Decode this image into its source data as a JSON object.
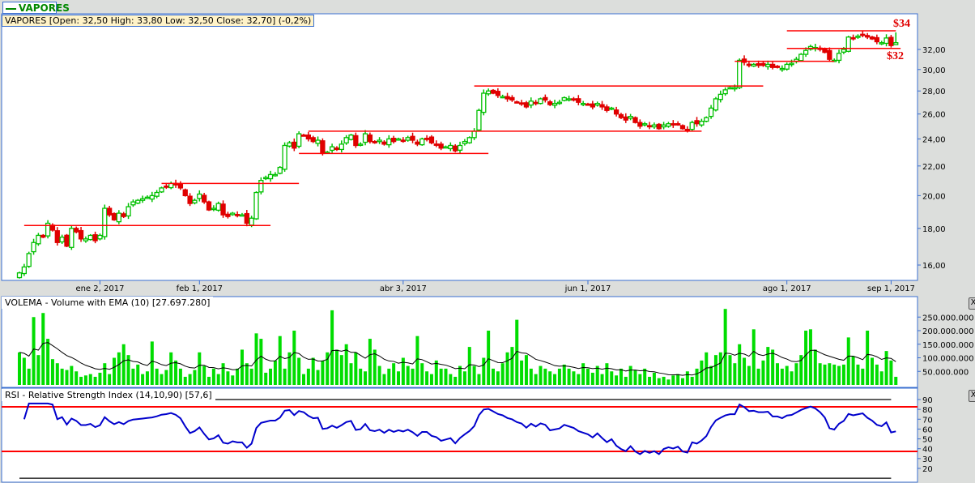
{
  "window": {
    "tab_label": "VAPORES"
  },
  "price_panel": {
    "header": "VAPORES [Open: 32,50  High: 33,80  Low: 32,50  Close: 32,70] (-0,2%)",
    "annotations": [
      {
        "text": "$34",
        "color": "#e00000"
      },
      {
        "text": "$32",
        "color": "#e00000"
      }
    ]
  },
  "volume_panel": {
    "header": "VOLEMA - Volume with EMA (10) [27.697.280]",
    "close_label": "X"
  },
  "rsi_panel": {
    "header": "RSI - Relative Strength Index (14,10,90) [57,6]",
    "close_label": "X"
  },
  "colors": {
    "up": "#00c000",
    "down": "#e00000",
    "volume": "#00dd00",
    "ema": "#000000",
    "rsi": "#0000cc",
    "levels": "#ff0000",
    "border": "#3a6fd0"
  },
  "chart_data": [
    {
      "type": "candlestick",
      "y_scale": "log",
      "ylim": [
        15.2,
        35.2
      ],
      "y_ticks": [
        "16,00",
        "18,00",
        "20,00",
        "22,00",
        "24,00",
        "26,00",
        "28,00",
        "30,00",
        "32,00"
      ],
      "y_tick_values": [
        16,
        18,
        20,
        22,
        24,
        26,
        28,
        30,
        32
      ],
      "x_ticks": [
        {
          "label": "ene 2, 2017",
          "index": 17
        },
        {
          "label": "feb 1, 2017",
          "index": 38
        },
        {
          "label": "abr 3, 2017",
          "index": 81
        },
        {
          "label": "jun 1, 2017",
          "index": 120
        },
        {
          "label": "ago 1, 2017",
          "index": 162
        },
        {
          "label": "sep 1, 2017",
          "index": 184
        }
      ],
      "last": {
        "open": 32.5,
        "high": 33.8,
        "low": 32.5,
        "close": 32.7
      },
      "close": [
        15.6,
        15.9,
        16.6,
        17.2,
        17.6,
        17.5,
        18.3,
        17.9,
        17.2,
        17.5,
        17.0,
        18.0,
        17.8,
        17.4,
        17.4,
        17.6,
        17.3,
        17.6,
        19.2,
        18.8,
        18.5,
        18.9,
        18.7,
        19.3,
        19.6,
        19.7,
        19.8,
        19.9,
        20.0,
        20.2,
        20.5,
        20.6,
        20.8,
        20.7,
        20.5,
        20.0,
        19.5,
        19.7,
        20.1,
        19.6,
        19.1,
        19.2,
        19.5,
        18.8,
        18.7,
        18.9,
        18.8,
        18.8,
        18.3,
        18.6,
        20.2,
        21.0,
        21.2,
        21.4,
        21.4,
        21.9,
        23.5,
        23.7,
        23.3,
        24.4,
        24.3,
        24.0,
        23.8,
        23.9,
        22.9,
        23.0,
        23.4,
        23.2,
        23.6,
        24.1,
        24.3,
        23.5,
        23.6,
        24.4,
        23.8,
        23.7,
        23.9,
        23.6,
        24.0,
        23.8,
        24.0,
        23.9,
        24.1,
        23.9,
        23.6,
        24.0,
        24.0,
        23.7,
        23.6,
        23.3,
        23.4,
        23.5,
        23.1,
        23.5,
        23.8,
        24.1,
        24.6,
        26.3,
        27.8,
        28.0,
        27.8,
        27.6,
        27.5,
        27.3,
        27.2,
        27.0,
        26.9,
        26.6,
        27.1,
        26.9,
        27.3,
        27.2,
        26.8,
        26.9,
        27.0,
        27.4,
        27.3,
        27.2,
        27.0,
        26.9,
        26.8,
        26.6,
        26.9,
        26.6,
        26.3,
        26.5,
        26.0,
        25.7,
        25.5,
        25.8,
        25.3,
        25.0,
        25.2,
        25.0,
        25.1,
        24.8,
        25.1,
        25.2,
        25.1,
        25.2,
        24.8,
        24.7,
        25.3,
        25.2,
        25.4,
        25.7,
        26.5,
        27.3,
        27.7,
        28.1,
        28.3,
        28.3,
        30.9,
        30.7,
        30.4,
        30.5,
        30.4,
        30.4,
        30.5,
        30.2,
        30.2,
        30.1,
        30.5,
        30.6,
        31.0,
        31.5,
        31.9,
        32.3,
        32.2,
        32.0,
        31.7,
        31.0,
        30.9,
        31.6,
        32.0,
        33.3,
        33.2,
        33.4,
        33.6,
        33.3,
        33.1,
        32.8,
        32.7,
        33.2,
        32.4,
        32.7
      ],
      "horizontal_lines": [
        {
          "price": 18.17,
          "from": 1,
          "to": 53
        },
        {
          "price": 20.8,
          "from": 30,
          "to": 59
        },
        {
          "price": 22.9,
          "from": 59,
          "to": 99
        },
        {
          "price": 24.6,
          "from": 61,
          "to": 144
        },
        {
          "price": 28.45,
          "from": 96,
          "to": 157
        },
        {
          "price": 30.8,
          "from": 151,
          "to": 172
        },
        {
          "price": 32.1,
          "from": 162,
          "to": 186
        },
        {
          "price": 33.98,
          "from": 162,
          "to": 185
        }
      ]
    },
    {
      "type": "bar",
      "unit": "volume",
      "ylim": [
        0,
        290000000
      ],
      "y_ticks": [
        "50.000.000",
        "100.000.000",
        "150.000.000",
        "200.000.000",
        "250.000.000"
      ],
      "y_tick_values": [
        50000000,
        100000000,
        150000000,
        200000000,
        250000000
      ],
      "ema_period": 10,
      "values_millions": [
        120,
        100,
        60,
        250,
        110,
        265,
        170,
        95,
        80,
        60,
        55,
        70,
        50,
        30,
        35,
        40,
        30,
        45,
        80,
        40,
        100,
        120,
        150,
        110,
        60,
        75,
        40,
        50,
        160,
        60,
        40,
        55,
        120,
        90,
        60,
        30,
        40,
        55,
        120,
        70,
        30,
        60,
        40,
        80,
        50,
        35,
        60,
        130,
        80,
        60,
        190,
        170,
        45,
        60,
        90,
        180,
        60,
        120,
        200,
        100,
        40,
        60,
        100,
        55,
        90,
        120,
        275,
        130,
        110,
        150,
        80,
        120,
        60,
        50,
        170,
        130,
        70,
        40,
        60,
        80,
        50,
        100,
        70,
        60,
        180,
        80,
        50,
        40,
        90,
        60,
        60,
        40,
        30,
        70,
        50,
        140,
        70,
        40,
        100,
        200,
        60,
        50,
        80,
        120,
        140,
        240,
        90,
        110,
        60,
        40,
        70,
        60,
        50,
        40,
        60,
        75,
        60,
        50,
        40,
        80,
        60,
        45,
        70,
        40,
        80,
        50,
        35,
        60,
        30,
        70,
        55,
        40,
        60,
        30,
        45,
        25,
        30,
        20,
        35,
        40,
        25,
        50,
        30,
        60,
        90,
        120,
        70,
        110,
        120,
        280,
        110,
        80,
        150,
        100,
        70,
        205,
        60,
        90,
        140,
        130,
        80,
        60,
        70,
        50,
        80,
        110,
        200,
        205,
        130,
        80,
        75,
        80,
        75,
        70,
        75,
        175,
        105,
        75,
        60,
        200,
        100,
        75,
        50,
        125,
        90,
        30
      ]
    },
    {
      "type": "line",
      "indicator": "RSI",
      "period": 14,
      "ylim": [
        8,
        96
      ],
      "y_ticks": [
        "20",
        "30",
        "40",
        "50",
        "60",
        "70",
        "80",
        "90"
      ],
      "y_tick_values": [
        20,
        30,
        40,
        50,
        60,
        70,
        80,
        90
      ],
      "bounds": [
        10,
        90
      ],
      "levels": [
        82.6,
        37.3
      ],
      "last_value": 57.6
    }
  ]
}
